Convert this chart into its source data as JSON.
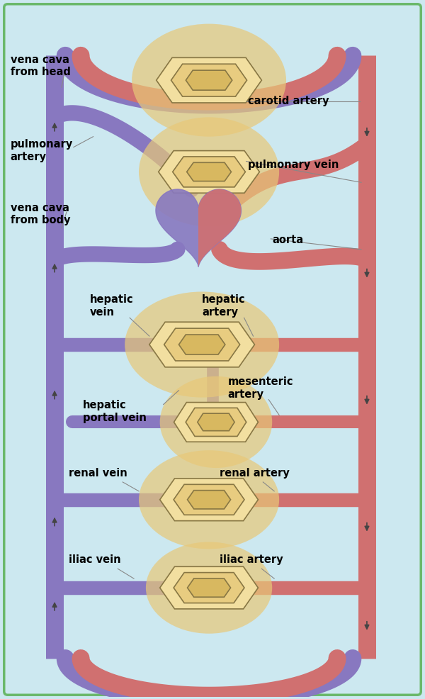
{
  "bg_color": "#cce8f0",
  "border_color": "#6ab86a",
  "vein_color": "#8878c0",
  "artery_color": "#d07070",
  "organ_fill": "#e8c878",
  "organ_fill2": "#f0d898",
  "organ_fill3": "#e0b860",
  "cap_edge": "#887744",
  "heart_v": "#8878c0",
  "heart_a": "#d07070",
  "arrow_color": "#333333",
  "label_color": "#000000",
  "line_color": "#888888",
  "labels": {
    "vena_cava_head": "vena cava\nfrom head",
    "carotid_artery": "carotid artery",
    "pulmonary_artery": "pulmonary\nartery",
    "pulmonary_vein": "pulmonary vein",
    "vena_cava_body": "vena cava\nfrom body",
    "aorta": "aorta",
    "hepatic_vein": "hepatic\nvein",
    "hepatic_artery": "hepatic\nartery",
    "mesenteric_artery": "mesenteric\nartery",
    "hepatic_portal_vein": "hepatic\nportal vein",
    "renal_vein": "renal vein",
    "renal_artery": "renal artery",
    "iliac_vein": "iliac vein",
    "iliac_artery": "iliac artery"
  }
}
